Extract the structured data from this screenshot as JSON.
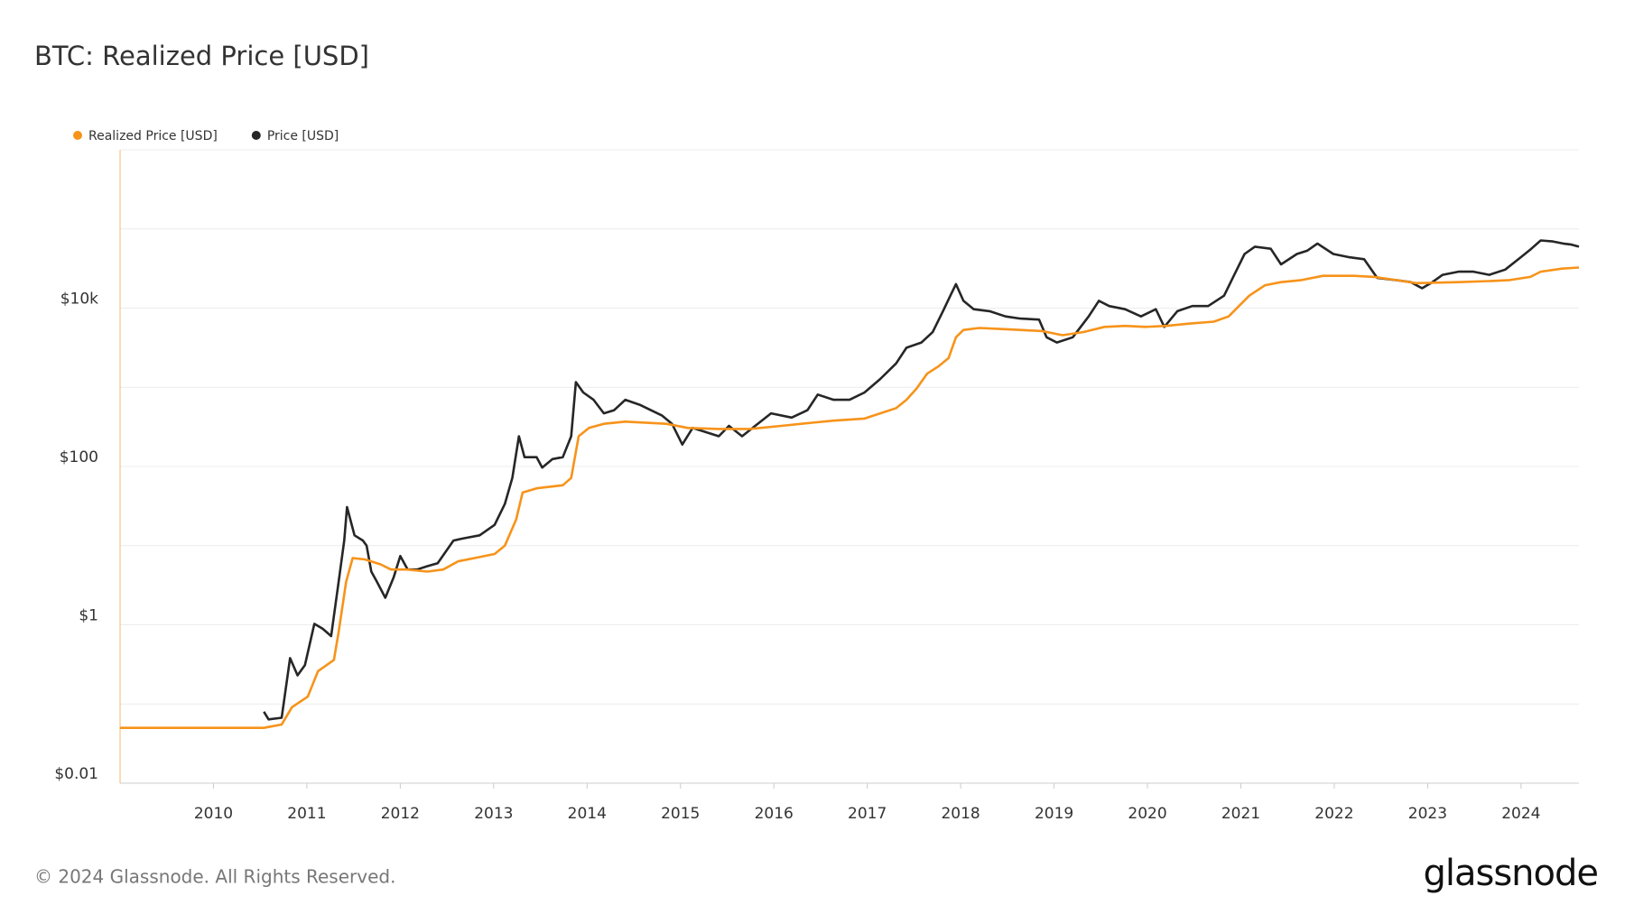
{
  "chart_data": {
    "type": "line",
    "title": "BTC: Realized Price [USD]",
    "log_y": true,
    "grid": true,
    "legend": "top-left",
    "xlim": [
      2009.0,
      2024.62
    ],
    "xticks": [
      2010,
      2011,
      2012,
      2013,
      2014,
      2015,
      2016,
      2017,
      2018,
      2019,
      2020,
      2021,
      2022,
      2023,
      2024
    ],
    "ylim": [
      0.01,
      1000000
    ],
    "yticks": [
      {
        "value": 0.01,
        "label": "$0.01"
      },
      {
        "value": 1,
        "label": "$1"
      },
      {
        "value": 100,
        "label": "$100"
      },
      {
        "value": 10000,
        "label": "$10k"
      }
    ],
    "minor_yticks": [
      0.1,
      10,
      1000,
      100000,
      1000000
    ],
    "series": [
      {
        "name": "Realized Price [USD]",
        "color": "#f7931a",
        "x": [
          2009.0,
          2010.54,
          2010.73,
          2010.84,
          2011.01,
          2011.12,
          2011.29,
          2011.34,
          2011.42,
          2011.49,
          2011.62,
          2011.79,
          2011.9,
          2012.07,
          2012.29,
          2012.46,
          2012.62,
          2012.79,
          2013.01,
          2013.12,
          2013.24,
          2013.31,
          2013.46,
          2013.74,
          2013.83,
          2013.91,
          2014.02,
          2014.18,
          2014.41,
          2014.85,
          2015.08,
          2015.41,
          2015.74,
          2016.08,
          2016.41,
          2016.64,
          2016.97,
          2017.14,
          2017.31,
          2017.42,
          2017.53,
          2017.64,
          2017.76,
          2017.87,
          2017.95,
          2018.03,
          2018.2,
          2018.42,
          2018.64,
          2018.87,
          2019.09,
          2019.31,
          2019.54,
          2019.76,
          2019.98,
          2020.2,
          2020.43,
          2020.71,
          2020.87,
          2020.98,
          2021.09,
          2021.26,
          2021.43,
          2021.65,
          2021.88,
          2022.21,
          2022.43,
          2022.66,
          2022.88,
          2023.33,
          2023.66,
          2023.88,
          2024.1,
          2024.21,
          2024.44,
          2024.62
        ],
        "values": [
          0.05,
          0.05,
          0.055,
          0.091,
          0.124,
          0.26,
          0.36,
          0.81,
          3.5,
          6.95,
          6.7,
          5.8,
          5.0,
          5.0,
          4.7,
          5.0,
          6.35,
          6.95,
          7.85,
          10,
          21.3,
          46.9,
          53,
          58,
          71.6,
          241,
          307,
          346,
          368,
          346,
          307,
          298,
          298,
          326,
          357,
          379,
          403,
          469,
          546,
          695,
          970,
          1483,
          1832,
          2336,
          4280,
          5300,
          5620,
          5460,
          5300,
          5140,
          4550,
          4980,
          5800,
          5970,
          5800,
          5970,
          6350,
          6750,
          7850,
          10620,
          14380,
          19450,
          21300,
          22600,
          25600,
          25600,
          24800,
          22600,
          20700,
          21300,
          22000,
          22600,
          24800,
          28900,
          31600,
          32600
        ]
      },
      {
        "name": "Price [USD]",
        "color": "#262626",
        "x": [
          2010.54,
          2010.59,
          2010.73,
          2010.82,
          2010.9,
          2010.98,
          2011.08,
          2011.17,
          2011.26,
          2011.34,
          2011.4,
          2011.43,
          2011.51,
          2011.6,
          2011.64,
          2011.69,
          2011.75,
          2011.84,
          2011.93,
          2012.0,
          2012.08,
          2012.18,
          2012.29,
          2012.4,
          2012.57,
          2012.68,
          2012.85,
          2013.01,
          2013.12,
          2013.2,
          2013.27,
          2013.33,
          2013.46,
          2013.52,
          2013.63,
          2013.74,
          2013.83,
          2013.88,
          2013.96,
          2014.07,
          2014.18,
          2014.29,
          2014.41,
          2014.57,
          2014.8,
          2014.91,
          2015.02,
          2015.13,
          2015.41,
          2015.52,
          2015.66,
          2015.8,
          2015.97,
          2016.19,
          2016.36,
          2016.47,
          2016.64,
          2016.81,
          2016.97,
          2017.14,
          2017.31,
          2017.42,
          2017.58,
          2017.7,
          2017.81,
          2017.89,
          2017.95,
          2018.03,
          2018.14,
          2018.31,
          2018.48,
          2018.64,
          2018.84,
          2018.92,
          2019.03,
          2019.2,
          2019.37,
          2019.48,
          2019.59,
          2019.76,
          2019.93,
          2020.09,
          2020.18,
          2020.32,
          2020.48,
          2020.65,
          2020.82,
          2020.93,
          2021.04,
          2021.15,
          2021.32,
          2021.43,
          2021.6,
          2021.71,
          2021.82,
          2021.99,
          2022.15,
          2022.32,
          2022.46,
          2022.66,
          2022.82,
          2022.94,
          2023.05,
          2023.16,
          2023.33,
          2023.49,
          2023.66,
          2023.83,
          2024.0,
          2024.11,
          2024.21,
          2024.34,
          2024.45,
          2024.54,
          2024.62
        ],
        "values": [
          0.08,
          0.064,
          0.067,
          0.38,
          0.23,
          0.31,
          1.03,
          0.89,
          0.72,
          3.5,
          11.6,
          30.7,
          13.5,
          11.6,
          10,
          4.7,
          3.5,
          2.2,
          4.0,
          7.4,
          5.0,
          5.0,
          5.5,
          6.0,
          11.6,
          12.4,
          13.5,
          18.3,
          33.6,
          71.6,
          241,
          131,
          131,
          97,
          124,
          131,
          241,
          1164,
          859,
          695,
          469,
          514,
          695,
          597,
          442,
          346,
          189,
          307,
          241,
          326,
          241,
          326,
          469,
          415,
          514,
          809,
          695,
          695,
          859,
          1274,
          2009,
          3162,
          3681,
          4980,
          9140,
          14380,
          20090,
          12360,
          9700,
          9140,
          7850,
          7380,
          7160,
          4280,
          3681,
          4280,
          7850,
          12360,
          10620,
          9700,
          7850,
          9700,
          5800,
          9140,
          10620,
          10620,
          14380,
          26360,
          48300,
          59700,
          56200,
          35700,
          48300,
          53000,
          65500,
          48300,
          44200,
          41500,
          24100,
          22600,
          21300,
          17800,
          21300,
          26360,
          28900,
          28900,
          26360,
          30700,
          44200,
          56200,
          71600,
          69500,
          65500,
          63500,
          59700
        ]
      }
    ]
  },
  "footer": {
    "copyright": "© 2024 Glassnode. All Rights Reserved.",
    "logo": "glassnode"
  }
}
